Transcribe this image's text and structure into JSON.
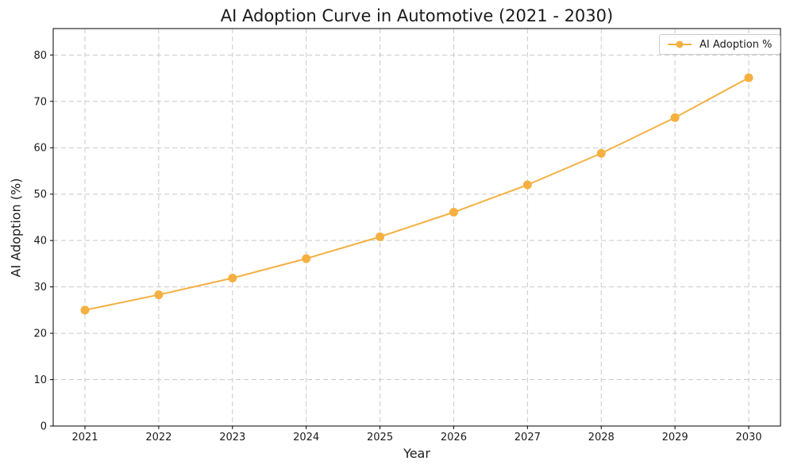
{
  "chart_data": {
    "type": "line",
    "title": "AI Adoption Curve in Automotive (2021 - 2030)",
    "xlabel": "Year",
    "ylabel": "AI Adoption (%)",
    "categories": [
      "2021",
      "2022",
      "2023",
      "2024",
      "2025",
      "2026",
      "2027",
      "2028",
      "2029",
      "2030"
    ],
    "series": [
      {
        "name": "AI Adoption %",
        "values": [
          25.0,
          28.3,
          31.9,
          36.1,
          40.8,
          46.1,
          52.0,
          58.8,
          66.5,
          75.1
        ],
        "color": "#F5B041",
        "marker": "circle",
        "line_width": 2,
        "marker_radius": 5.5
      }
    ],
    "ylim": [
      0,
      85.7
    ],
    "yticks": [
      0,
      10,
      20,
      30,
      40,
      50,
      60,
      70,
      80
    ],
    "grid": true,
    "grid_style": "dashed",
    "legend_position": "top-right"
  },
  "colors": {
    "series_orange": "#F5B041",
    "grid": "#c9c9c9",
    "spine": "#000000",
    "text": "#1a1a1a",
    "background": "#ffffff",
    "legend_border": "#cccccc"
  }
}
